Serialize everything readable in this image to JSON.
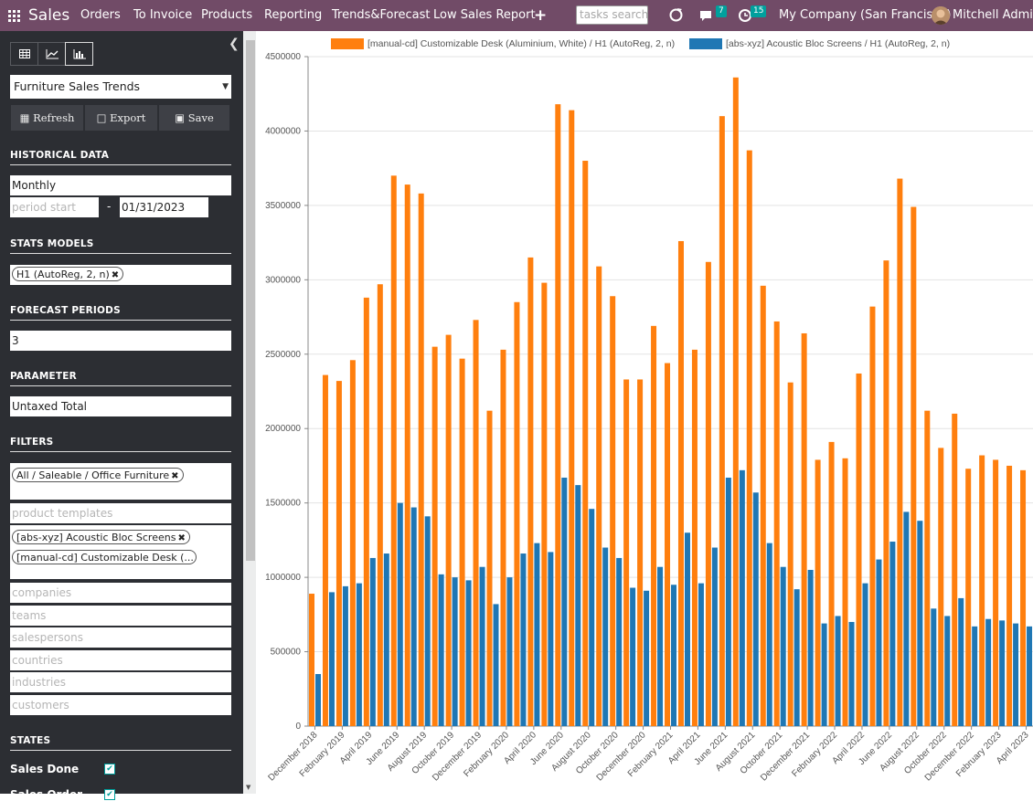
{
  "nav": {
    "app_name": "Sales",
    "menu": [
      "Orders",
      "To Invoice",
      "Products",
      "Reporting",
      "Trends&Forecast",
      "Low Sales Report"
    ],
    "add": "+",
    "search_placeholder": "tasks search",
    "messages_count": "7",
    "activities_count": "15",
    "company": "My Company (San Francisco)",
    "user": "Mitchell Admin"
  },
  "sidebar": {
    "report_name": "Furniture Sales Trends",
    "buttons": {
      "refresh": "Refresh",
      "export": "Export",
      "save": "Save"
    },
    "historical_title": "HISTORICAL DATA",
    "granularity": "Monthly",
    "period_start_placeholder": "period start",
    "period_sep": "-",
    "period_end": "01/31/2023",
    "stats_title": "STATS MODELS",
    "stats_model_tag": "H1 (AutoReg, 2, n)",
    "forecast_title": "FORECAST PERIODS",
    "forecast_periods": "3",
    "parameter_title": "PARAMETER",
    "parameter": "Untaxed Total",
    "filters_title": "FILTERS",
    "category_tag": "All / Saleable / Office Furniture",
    "product_templates_placeholder": "product templates",
    "product_tags": [
      "[abs-xyz] Acoustic Bloc Screens",
      "[manual-cd] Customizable Desk (..."
    ],
    "filter_placeholders": [
      "companies",
      "teams",
      "salespersons",
      "countries",
      "industries",
      "customers"
    ],
    "states_title": "STATES",
    "state_sales_done": "Sales Done",
    "state_sales_order": "Sales Order"
  },
  "colors": {
    "orange": "#ff7f0e",
    "blue": "#1f77b4",
    "nav": "#714b67",
    "sidebar": "#2c2e33"
  },
  "chart_data": {
    "type": "bar",
    "ylim": [
      0,
      4500000
    ],
    "yticks": [
      0,
      500000,
      1000000,
      1500000,
      2000000,
      2500000,
      3000000,
      3500000,
      4000000,
      4500000
    ],
    "grid": true,
    "legend_position": "top",
    "tick_labels": [
      "December 2018",
      "February 2019",
      "April 2019",
      "June 2019",
      "August 2019",
      "October 2019",
      "December 2019",
      "February 2020",
      "April 2020",
      "June 2020",
      "August 2020",
      "October 2020",
      "December 2020",
      "February 2021",
      "April 2021",
      "June 2021",
      "August 2021",
      "October 2021",
      "December 2021",
      "February 2022",
      "April 2022",
      "June 2022",
      "August 2022",
      "October 2022",
      "December 2022",
      "February 2023",
      "April 2023"
    ],
    "series": [
      {
        "name": "[manual-cd] Customizable Desk (Aluminium, White) / H1 (AutoReg, 2, n)",
        "color": "#ff7f0e",
        "values": [
          890000,
          2360000,
          2320000,
          2460000,
          2880000,
          2970000,
          3700000,
          3640000,
          3580000,
          2550000,
          2630000,
          2470000,
          2730000,
          2120000,
          2530000,
          2850000,
          3150000,
          2980000,
          4180000,
          4140000,
          3800000,
          3090000,
          2890000,
          2330000,
          2330000,
          2690000,
          2440000,
          3260000,
          2530000,
          3120000,
          4100000,
          4360000,
          3870000,
          2960000,
          2720000,
          2310000,
          2640000,
          1790000,
          1910000,
          1800000,
          2370000,
          2820000,
          3130000,
          3680000,
          3490000,
          2120000,
          1870000,
          2100000,
          1730000,
          1820000,
          1790000,
          1750000,
          1720000
        ]
      },
      {
        "name": "[abs-xyz] Acoustic Bloc Screens / H1 (AutoReg, 2, n)",
        "color": "#1f77b4",
        "values": [
          350000,
          900000,
          940000,
          960000,
          1130000,
          1160000,
          1500000,
          1470000,
          1410000,
          1020000,
          1000000,
          980000,
          1070000,
          820000,
          1000000,
          1160000,
          1230000,
          1170000,
          1670000,
          1620000,
          1460000,
          1200000,
          1130000,
          930000,
          910000,
          1070000,
          950000,
          1300000,
          960000,
          1200000,
          1670000,
          1720000,
          1570000,
          1230000,
          1070000,
          920000,
          1050000,
          690000,
          740000,
          700000,
          960000,
          1120000,
          1240000,
          1440000,
          1380000,
          790000,
          740000,
          860000,
          670000,
          720000,
          710000,
          690000,
          670000
        ]
      }
    ]
  }
}
